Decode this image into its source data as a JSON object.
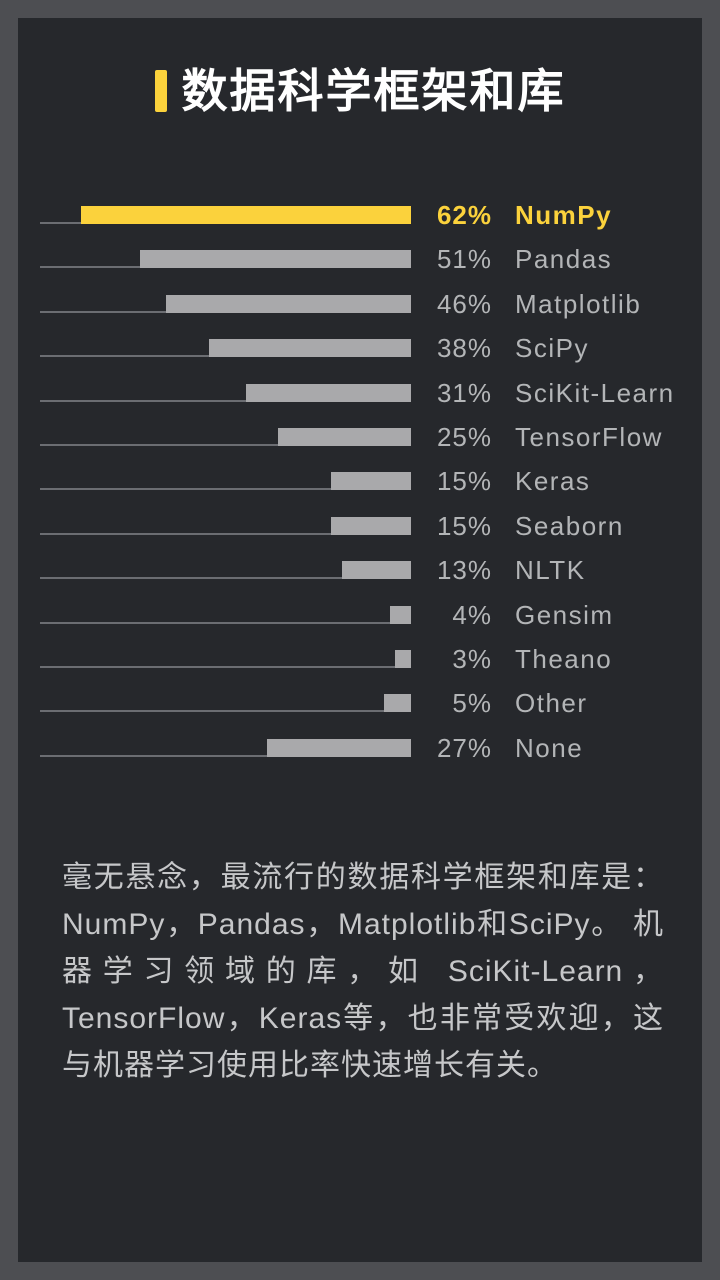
{
  "theme": {
    "outer_bg": "#4d4e52",
    "panel_bg": "#26282c",
    "accent": "#fbd23c",
    "bar": "#a9a9ab",
    "baseline": "#6b6d72",
    "label": "#b3b5b7",
    "title": "#ffffff",
    "paragraph": "#c6c7c9"
  },
  "header": {
    "title": "数据科学框架和库"
  },
  "chart_data": {
    "type": "bar",
    "orientation": "horizontal",
    "title": "数据科学框架和库",
    "unit": "%",
    "value_range": [
      0,
      62
    ],
    "legend": "none",
    "grid": "off",
    "categories": [
      "NumPy",
      "Pandas",
      "Matplotlib",
      "SciPy",
      "SciKit-Learn",
      "TensorFlow",
      "Keras",
      "Seaborn",
      "NLTK",
      "Gensim",
      "Theano",
      "Other",
      "None"
    ],
    "values": [
      62,
      51,
      46,
      38,
      31,
      25,
      15,
      15,
      13,
      4,
      3,
      5,
      27
    ],
    "items": [
      {
        "label": "NumPy",
        "value": 62,
        "display": "62%",
        "highlight": true
      },
      {
        "label": "Pandas",
        "value": 51,
        "display": "51%",
        "highlight": false
      },
      {
        "label": "Matplotlib",
        "value": 46,
        "display": "46%",
        "highlight": false
      },
      {
        "label": "SciPy",
        "value": 38,
        "display": "38%",
        "highlight": false
      },
      {
        "label": "SciKit-Learn",
        "value": 31,
        "display": "31%",
        "highlight": false
      },
      {
        "label": "TensorFlow",
        "value": 25,
        "display": "25%",
        "highlight": false
      },
      {
        "label": "Keras",
        "value": 15,
        "display": "15%",
        "highlight": false
      },
      {
        "label": "Seaborn",
        "value": 15,
        "display": "15%",
        "highlight": false
      },
      {
        "label": "NLTK",
        "value": 13,
        "display": "13%",
        "highlight": false
      },
      {
        "label": "Gensim",
        "value": 4,
        "display": "4%",
        "highlight": false
      },
      {
        "label": "Theano",
        "value": 3,
        "display": "3%",
        "highlight": false
      },
      {
        "label": "Other",
        "value": 5,
        "display": "5%",
        "highlight": false
      },
      {
        "label": "None",
        "value": 27,
        "display": "27%",
        "highlight": false
      }
    ]
  },
  "paragraph": {
    "text": "毫无悬念，最流行的数据科学框架和库是：NumPy，Pandas，Matplotlib和SciPy。 机器学习领域的库，如 SciKit-Learn，TensorFlow，Keras等，也非常受欢迎，这与机器学习使用比率快速增长有关。"
  }
}
